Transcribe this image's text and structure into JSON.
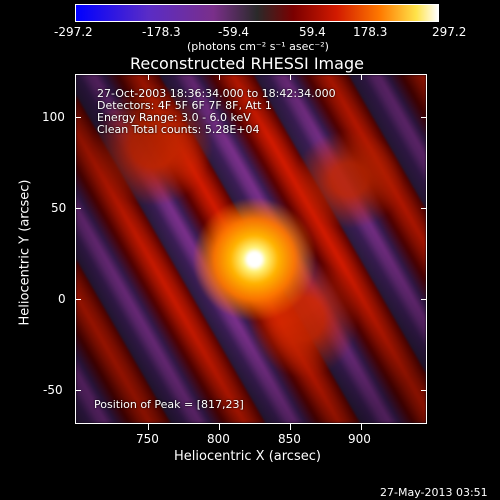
{
  "colorbar": {
    "ticks": [
      "-297.2",
      "-178.3",
      "-59.4",
      "59.4",
      "178.3",
      "297.2"
    ],
    "units": "(photons cm⁻² s⁻¹ asec⁻²)"
  },
  "plot": {
    "title": "Reconstructed RHESSI Image",
    "x_label": "Heliocentric X (arcsec)",
    "y_label": "Heliocentric Y (arcsec)",
    "x_ticks": [
      "750",
      "800",
      "850",
      "900"
    ],
    "y_ticks": [
      "100",
      "50",
      "0",
      "-50"
    ],
    "info_lines": [
      "27-Oct-2003 18:36:34.000 to 18:42:34.000",
      "Detectors: 4F 5F 6F 7F 8F, Att 1",
      "Energy Range: 3.0 - 6.0 keV",
      "Clean     Total counts: 5.28E+04"
    ],
    "peak_text": "Position of Peak = [817,23]"
  },
  "footer": {
    "timestamp": "27-May-2013 03:51"
  }
}
